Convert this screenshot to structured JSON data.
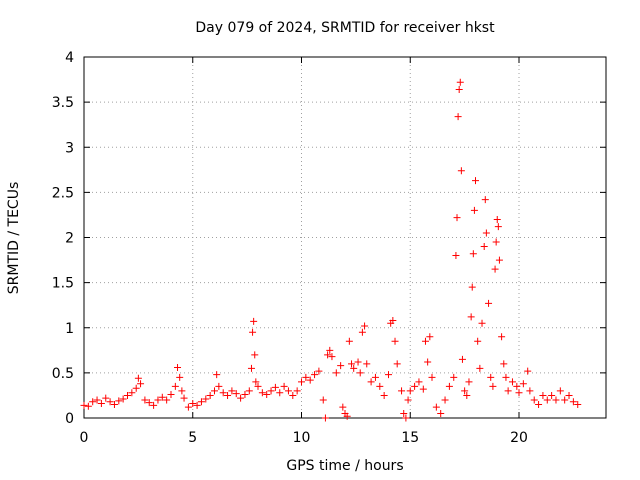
{
  "chart_data": {
    "type": "scatter",
    "title": "Day 079 of 2024, SRMTID for receiver hkst",
    "xlabel": "GPS time / hours",
    "ylabel": "SRMTID / TECUs",
    "xlim": [
      0,
      24
    ],
    "ylim": [
      0,
      4
    ],
    "xticks": [
      0,
      5,
      10,
      15,
      20
    ],
    "yticks": [
      0,
      0.5,
      1,
      1.5,
      2,
      2.5,
      3,
      3.5,
      4
    ],
    "xtick_labels": [
      "0",
      "5",
      "10",
      "15",
      "20"
    ],
    "ytick_labels": [
      "0",
      "0.5",
      "1",
      "1.5",
      "2",
      "2.5",
      "3",
      "3.5",
      "4"
    ],
    "grid": true,
    "marker": "+",
    "color": "#ff0000",
    "series": [
      {
        "name": "SRMTID",
        "points": [
          [
            0.0,
            0.14
          ],
          [
            0.2,
            0.13
          ],
          [
            0.4,
            0.18
          ],
          [
            0.6,
            0.2
          ],
          [
            0.8,
            0.16
          ],
          [
            1.0,
            0.22
          ],
          [
            1.2,
            0.18
          ],
          [
            1.4,
            0.15
          ],
          [
            1.6,
            0.19
          ],
          [
            1.8,
            0.21
          ],
          [
            2.0,
            0.25
          ],
          [
            2.2,
            0.28
          ],
          [
            2.4,
            0.33
          ],
          [
            2.5,
            0.44
          ],
          [
            2.6,
            0.38
          ],
          [
            2.8,
            0.2
          ],
          [
            3.0,
            0.17
          ],
          [
            3.2,
            0.14
          ],
          [
            3.4,
            0.2
          ],
          [
            3.6,
            0.23
          ],
          [
            3.8,
            0.2
          ],
          [
            4.0,
            0.26
          ],
          [
            4.2,
            0.35
          ],
          [
            4.3,
            0.56
          ],
          [
            4.4,
            0.45
          ],
          [
            4.5,
            0.3
          ],
          [
            4.6,
            0.22
          ],
          [
            4.8,
            0.12
          ],
          [
            5.0,
            0.16
          ],
          [
            5.2,
            0.14
          ],
          [
            5.4,
            0.18
          ],
          [
            5.6,
            0.21
          ],
          [
            5.8,
            0.25
          ],
          [
            6.0,
            0.3
          ],
          [
            6.1,
            0.48
          ],
          [
            6.2,
            0.35
          ],
          [
            6.4,
            0.28
          ],
          [
            6.6,
            0.25
          ],
          [
            6.8,
            0.3
          ],
          [
            7.0,
            0.27
          ],
          [
            7.2,
            0.22
          ],
          [
            7.4,
            0.26
          ],
          [
            7.6,
            0.3
          ],
          [
            7.7,
            0.55
          ],
          [
            7.75,
            0.95
          ],
          [
            7.8,
            1.07
          ],
          [
            7.85,
            0.7
          ],
          [
            7.9,
            0.4
          ],
          [
            8.0,
            0.35
          ],
          [
            8.2,
            0.28
          ],
          [
            8.4,
            0.26
          ],
          [
            8.6,
            0.3
          ],
          [
            8.8,
            0.34
          ],
          [
            9.0,
            0.28
          ],
          [
            9.2,
            0.35
          ],
          [
            9.4,
            0.3
          ],
          [
            9.6,
            0.25
          ],
          [
            9.8,
            0.3
          ],
          [
            10.0,
            0.4
          ],
          [
            10.2,
            0.45
          ],
          [
            10.4,
            0.42
          ],
          [
            10.6,
            0.48
          ],
          [
            10.8,
            0.52
          ],
          [
            11.0,
            0.2
          ],
          [
            11.1,
            0.0
          ],
          [
            11.2,
            0.7
          ],
          [
            11.3,
            0.75
          ],
          [
            11.4,
            0.68
          ],
          [
            11.6,
            0.5
          ],
          [
            11.8,
            0.58
          ],
          [
            11.9,
            0.12
          ],
          [
            12.0,
            0.05
          ],
          [
            12.1,
            0.02
          ],
          [
            12.2,
            0.85
          ],
          [
            12.3,
            0.6
          ],
          [
            12.4,
            0.55
          ],
          [
            12.6,
            0.62
          ],
          [
            12.7,
            0.5
          ],
          [
            12.8,
            0.95
          ],
          [
            12.9,
            1.02
          ],
          [
            13.0,
            0.6
          ],
          [
            13.2,
            0.4
          ],
          [
            13.4,
            0.45
          ],
          [
            13.6,
            0.35
          ],
          [
            13.8,
            0.25
          ],
          [
            14.0,
            0.48
          ],
          [
            14.1,
            1.05
          ],
          [
            14.2,
            1.08
          ],
          [
            14.3,
            0.85
          ],
          [
            14.4,
            0.6
          ],
          [
            14.6,
            0.3
          ],
          [
            14.7,
            0.05
          ],
          [
            14.8,
            0.0
          ],
          [
            14.9,
            0.2
          ],
          [
            15.0,
            0.3
          ],
          [
            15.2,
            0.35
          ],
          [
            15.4,
            0.4
          ],
          [
            15.6,
            0.32
          ],
          [
            15.7,
            0.85
          ],
          [
            15.8,
            0.62
          ],
          [
            15.9,
            0.9
          ],
          [
            16.0,
            0.45
          ],
          [
            16.2,
            0.12
          ],
          [
            16.4,
            0.05
          ],
          [
            16.6,
            0.2
          ],
          [
            16.8,
            0.35
          ],
          [
            17.0,
            0.45
          ],
          [
            17.1,
            1.8
          ],
          [
            17.15,
            2.22
          ],
          [
            17.2,
            3.34
          ],
          [
            17.25,
            3.64
          ],
          [
            17.3,
            3.72
          ],
          [
            17.35,
            2.74
          ],
          [
            17.4,
            0.65
          ],
          [
            17.5,
            0.3
          ],
          [
            17.6,
            0.25
          ],
          [
            17.7,
            0.4
          ],
          [
            17.8,
            1.12
          ],
          [
            17.85,
            1.45
          ],
          [
            17.9,
            1.82
          ],
          [
            17.95,
            2.3
          ],
          [
            18.0,
            2.63
          ],
          [
            18.1,
            0.85
          ],
          [
            18.2,
            0.55
          ],
          [
            18.3,
            1.05
          ],
          [
            18.4,
            1.9
          ],
          [
            18.45,
            2.42
          ],
          [
            18.5,
            2.05
          ],
          [
            18.6,
            1.27
          ],
          [
            18.7,
            0.45
          ],
          [
            18.8,
            0.35
          ],
          [
            18.9,
            1.65
          ],
          [
            18.95,
            1.95
          ],
          [
            19.0,
            2.2
          ],
          [
            19.05,
            2.12
          ],
          [
            19.1,
            1.75
          ],
          [
            19.2,
            0.9
          ],
          [
            19.3,
            0.6
          ],
          [
            19.4,
            0.45
          ],
          [
            19.5,
            0.3
          ],
          [
            19.7,
            0.4
          ],
          [
            19.9,
            0.35
          ],
          [
            20.0,
            0.28
          ],
          [
            20.2,
            0.38
          ],
          [
            20.4,
            0.52
          ],
          [
            20.5,
            0.3
          ],
          [
            20.7,
            0.2
          ],
          [
            20.9,
            0.15
          ],
          [
            21.1,
            0.25
          ],
          [
            21.3,
            0.2
          ],
          [
            21.5,
            0.25
          ],
          [
            21.7,
            0.2
          ],
          [
            21.9,
            0.3
          ],
          [
            22.1,
            0.2
          ],
          [
            22.3,
            0.25
          ],
          [
            22.5,
            0.18
          ],
          [
            22.7,
            0.15
          ]
        ]
      }
    ]
  }
}
